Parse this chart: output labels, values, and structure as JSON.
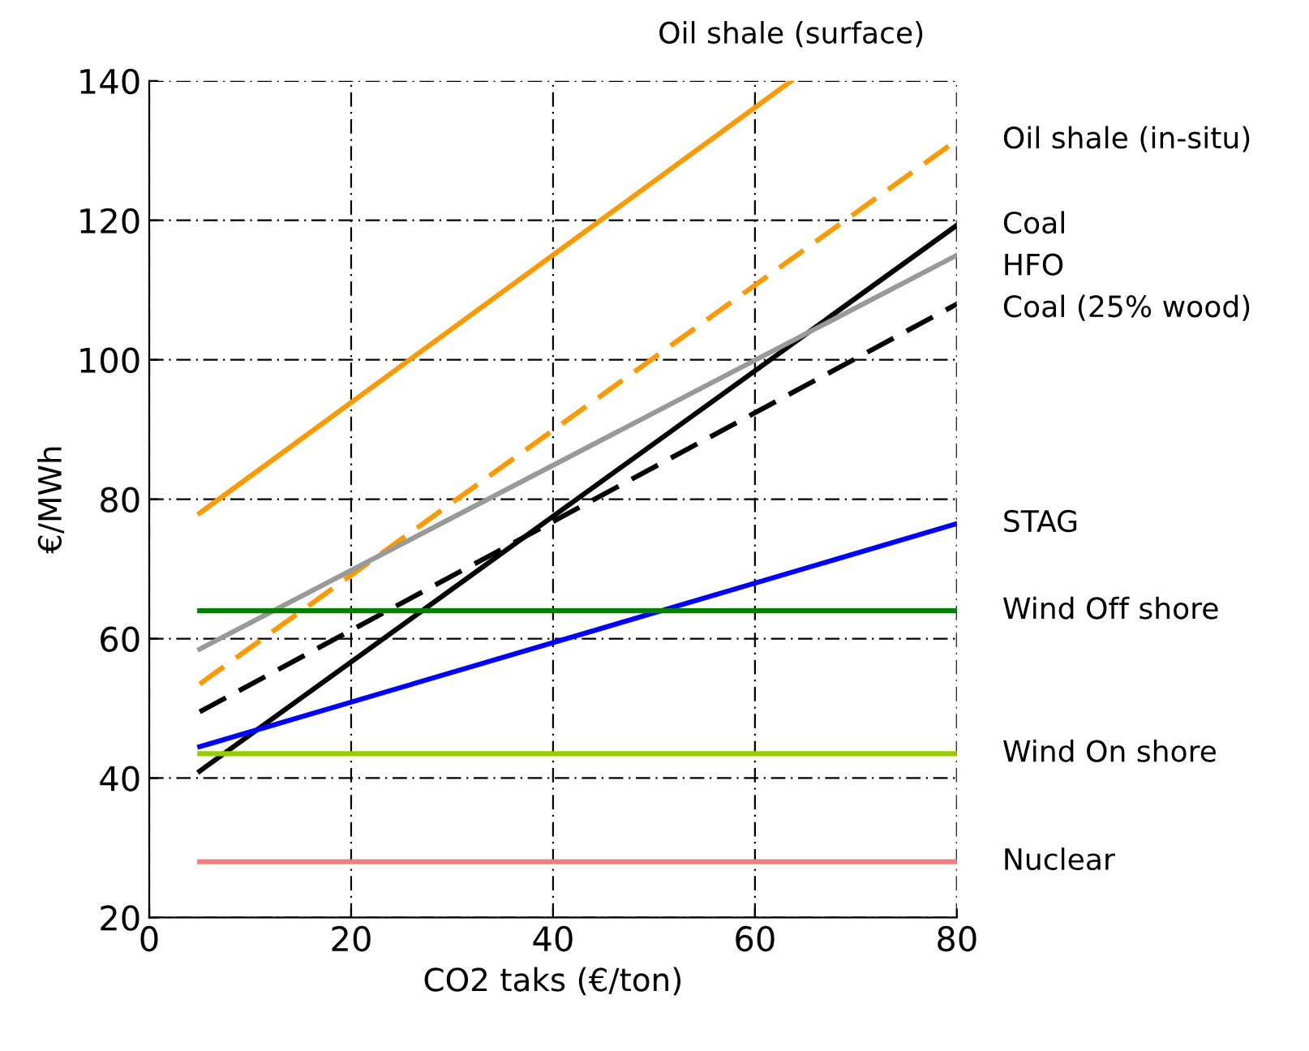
{
  "chart_data": {
    "type": "line",
    "xlabel": "CO2 taks (€/ton)",
    "ylabel": "€/MWh",
    "xlim": [
      0,
      80
    ],
    "ylim": [
      20,
      140
    ],
    "xticks": [
      0,
      20,
      40,
      60,
      80
    ],
    "yticks": [
      20,
      40,
      60,
      80,
      100,
      120,
      140
    ],
    "grid": true,
    "legend": false,
    "marker": "none",
    "series": [
      {
        "name": "Oil shale (surface)",
        "color": "#ff9900",
        "x": [
          5,
          63.6
        ],
        "values": [
          78,
          140
        ]
      },
      {
        "name": "Oil shale (in-situ)",
        "color": "#ff9900",
        "line_style": "dashed",
        "x": [
          5,
          80
        ],
        "values": [
          53.5,
          131.5
        ]
      },
      {
        "name": "Coal",
        "color": "#000000",
        "x": [
          5,
          80
        ],
        "values": [
          41,
          119.3
        ]
      },
      {
        "name": "HFO",
        "color": "#999999",
        "x": [
          5,
          80
        ],
        "values": [
          58.5,
          115
        ]
      },
      {
        "name": "Coal (25% wood)",
        "color": "#000000",
        "line_style": "dashed",
        "x": [
          5,
          80
        ],
        "values": [
          49.5,
          108
        ]
      },
      {
        "name": "STAG",
        "color": "#0000ff",
        "x": [
          5,
          80
        ],
        "values": [
          44.5,
          76.5
        ]
      },
      {
        "name": "Wind Off shore",
        "color": "#008000",
        "x": [
          5,
          80
        ],
        "values": [
          64,
          64
        ]
      },
      {
        "name": "Wind On shore",
        "color": "#99cc00",
        "x": [
          5,
          80
        ],
        "values": [
          43.5,
          43.5
        ]
      },
      {
        "name": "Nuclear",
        "color": "#f08080",
        "x": [
          5,
          80
        ],
        "values": [
          28,
          28
        ]
      }
    ]
  }
}
